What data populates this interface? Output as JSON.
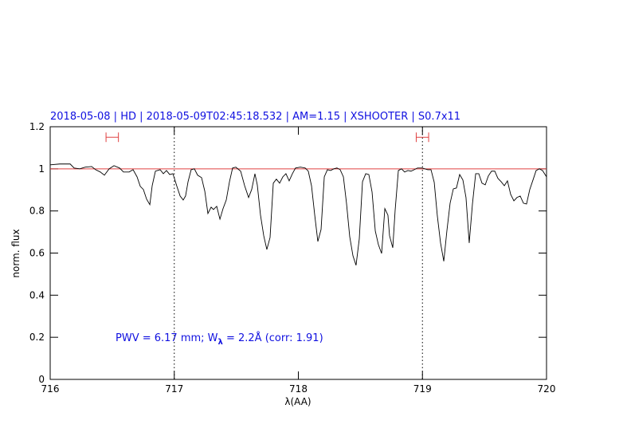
{
  "chart_data": {
    "type": "line",
    "title": "2018-05-08 | HD | 2018-05-09T02:45:18.532 | AM=1.15 | XSHOOTER | S0.7x11",
    "xlabel": "λ(AA)",
    "ylabel": "norm. flux",
    "annotation": [
      "PWV = 6.17 mm; W",
      "λ",
      " = 2.2Å (corr: 1.91)"
    ],
    "xlim": [
      716,
      720
    ],
    "xticks": [
      716,
      717,
      718,
      719,
      720
    ],
    "ylim": [
      0,
      1.2
    ],
    "yticks": [
      0,
      0.2,
      0.4,
      0.6,
      0.8,
      1,
      1.2
    ],
    "color": "#000000",
    "hline": 1,
    "hline_color": "#e04040",
    "vlines": [
      717,
      719
    ],
    "markers": [
      {
        "x": 716.5,
        "xerr": 0.05,
        "y": 1.15
      },
      {
        "x": 719,
        "xerr": 0.05,
        "y": 1.15
      }
    ],
    "marker_color": "#e04040",
    "x": [
      716.0,
      716.077,
      716.161,
      716.193,
      716.238,
      716.283,
      716.334,
      716.366,
      716.404,
      716.437,
      716.475,
      716.514,
      716.559,
      716.591,
      716.636,
      716.668,
      716.7,
      716.726,
      716.751,
      716.777,
      716.803,
      716.822,
      716.848,
      716.886,
      716.912,
      716.937,
      716.963,
      716.989,
      717.021,
      717.047,
      717.072,
      717.091,
      717.111,
      717.136,
      717.162,
      717.188,
      717.22,
      717.246,
      717.271,
      717.297,
      717.316,
      717.342,
      717.368,
      717.393,
      717.419,
      717.445,
      717.47,
      717.496,
      717.535,
      717.567,
      717.599,
      717.624,
      717.65,
      717.669,
      717.695,
      717.721,
      717.746,
      717.772,
      717.798,
      717.823,
      717.849,
      717.875,
      717.9,
      717.926,
      717.952,
      717.977,
      718.016,
      718.055,
      718.08,
      718.106,
      718.132,
      718.157,
      718.183,
      718.209,
      718.234,
      718.26,
      718.286,
      718.311,
      718.337,
      718.363,
      718.388,
      718.414,
      718.44,
      718.465,
      718.491,
      718.517,
      718.543,
      718.568,
      718.594,
      718.62,
      718.645,
      718.671,
      718.697,
      718.722,
      718.735,
      718.761,
      718.78,
      718.806,
      718.831,
      718.857,
      718.883,
      718.908,
      718.934,
      718.96,
      718.998,
      719.043,
      719.069,
      719.095,
      719.12,
      719.146,
      719.172,
      719.197,
      719.223,
      719.249,
      719.274,
      719.3,
      719.326,
      719.351,
      719.377,
      719.403,
      719.429,
      719.454,
      719.48,
      719.506,
      719.531,
      719.557,
      719.583,
      719.608,
      719.634,
      719.66,
      719.685,
      719.711,
      719.737,
      719.762,
      719.788,
      719.814,
      719.839,
      719.865,
      719.891,
      719.916,
      719.942,
      719.968,
      720.0
    ],
    "values": [
      1.019,
      1.023,
      1.023,
      1.004,
      1.0,
      1.008,
      1.011,
      0.996,
      0.985,
      0.97,
      1.0,
      1.015,
      1.004,
      0.985,
      0.985,
      0.996,
      0.962,
      0.917,
      0.902,
      0.856,
      0.83,
      0.92,
      0.989,
      0.996,
      0.977,
      0.992,
      0.973,
      0.977,
      0.917,
      0.871,
      0.852,
      0.871,
      0.939,
      0.996,
      1.0,
      0.97,
      0.958,
      0.894,
      0.788,
      0.818,
      0.807,
      0.822,
      0.761,
      0.811,
      0.852,
      0.939,
      1.004,
      1.008,
      0.989,
      0.92,
      0.864,
      0.902,
      0.977,
      0.924,
      0.78,
      0.682,
      0.617,
      0.674,
      0.932,
      0.951,
      0.932,
      0.962,
      0.977,
      0.943,
      0.977,
      1.004,
      1.008,
      1.004,
      0.989,
      0.92,
      0.78,
      0.655,
      0.712,
      0.962,
      0.996,
      0.992,
      1.0,
      1.004,
      0.996,
      0.962,
      0.837,
      0.678,
      0.587,
      0.542,
      0.667,
      0.939,
      0.977,
      0.973,
      0.89,
      0.705,
      0.64,
      0.598,
      0.811,
      0.78,
      0.682,
      0.625,
      0.803,
      0.992,
      1.0,
      0.985,
      0.992,
      0.989,
      0.996,
      1.004,
      1.004,
      0.996,
      0.996,
      0.936,
      0.777,
      0.648,
      0.561,
      0.705,
      0.837,
      0.905,
      0.909,
      0.973,
      0.947,
      0.864,
      0.648,
      0.833,
      0.977,
      0.977,
      0.932,
      0.924,
      0.966,
      0.989,
      0.989,
      0.955,
      0.939,
      0.92,
      0.943,
      0.879,
      0.848,
      0.864,
      0.871,
      0.837,
      0.833,
      0.902,
      0.947,
      0.992,
      1.0,
      0.992,
      0.962
    ]
  }
}
